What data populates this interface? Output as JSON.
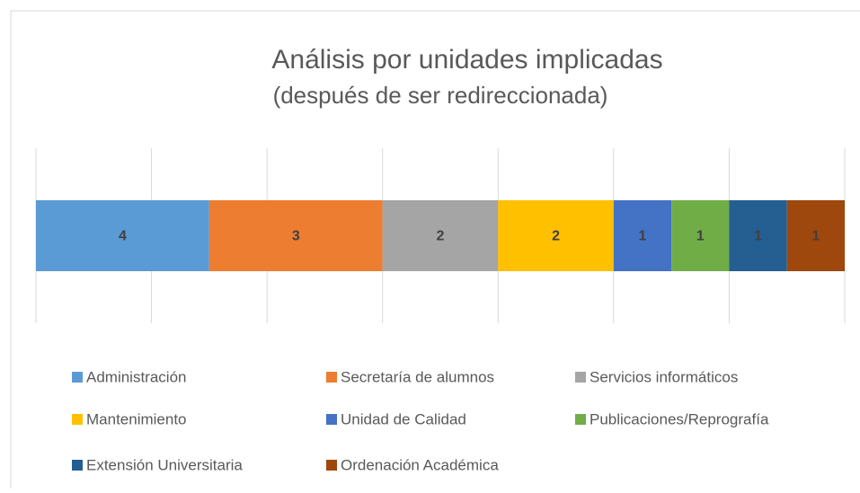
{
  "chart_data": {
    "type": "stacked_bar_horizontal",
    "title": "Análisis por unidades implicadas",
    "subtitle": "(después de ser redireccionada)",
    "categories": [
      null
    ],
    "series": [
      {
        "name": "Administración",
        "color": "#5b9bd5",
        "values": [
          4
        ]
      },
      {
        "name": "Secretaría de alumnos",
        "color": "#ed7d31",
        "values": [
          3
        ]
      },
      {
        "name": "Servicios informáticos",
        "color": "#a5a5a5",
        "values": [
          2
        ]
      },
      {
        "name": "Mantenimiento",
        "color": "#ffc000",
        "values": [
          2
        ]
      },
      {
        "name": "Unidad de Calidad",
        "color": "#4472c4",
        "values": [
          1
        ]
      },
      {
        "name": "Publicaciones/Reprografía",
        "color": "#70ad47",
        "values": [
          1
        ]
      },
      {
        "name": "Extensión Universitaria",
        "color": "#255e91",
        "values": [
          1
        ]
      },
      {
        "name": "Ordenación Académica",
        "color": "#9e480e",
        "values": [
          1
        ]
      }
    ],
    "xlim": [
      1,
      15
    ],
    "xticks": [
      1,
      3,
      5,
      7,
      9,
      11,
      13,
      15
    ],
    "grid": true,
    "legend": "bottom"
  }
}
